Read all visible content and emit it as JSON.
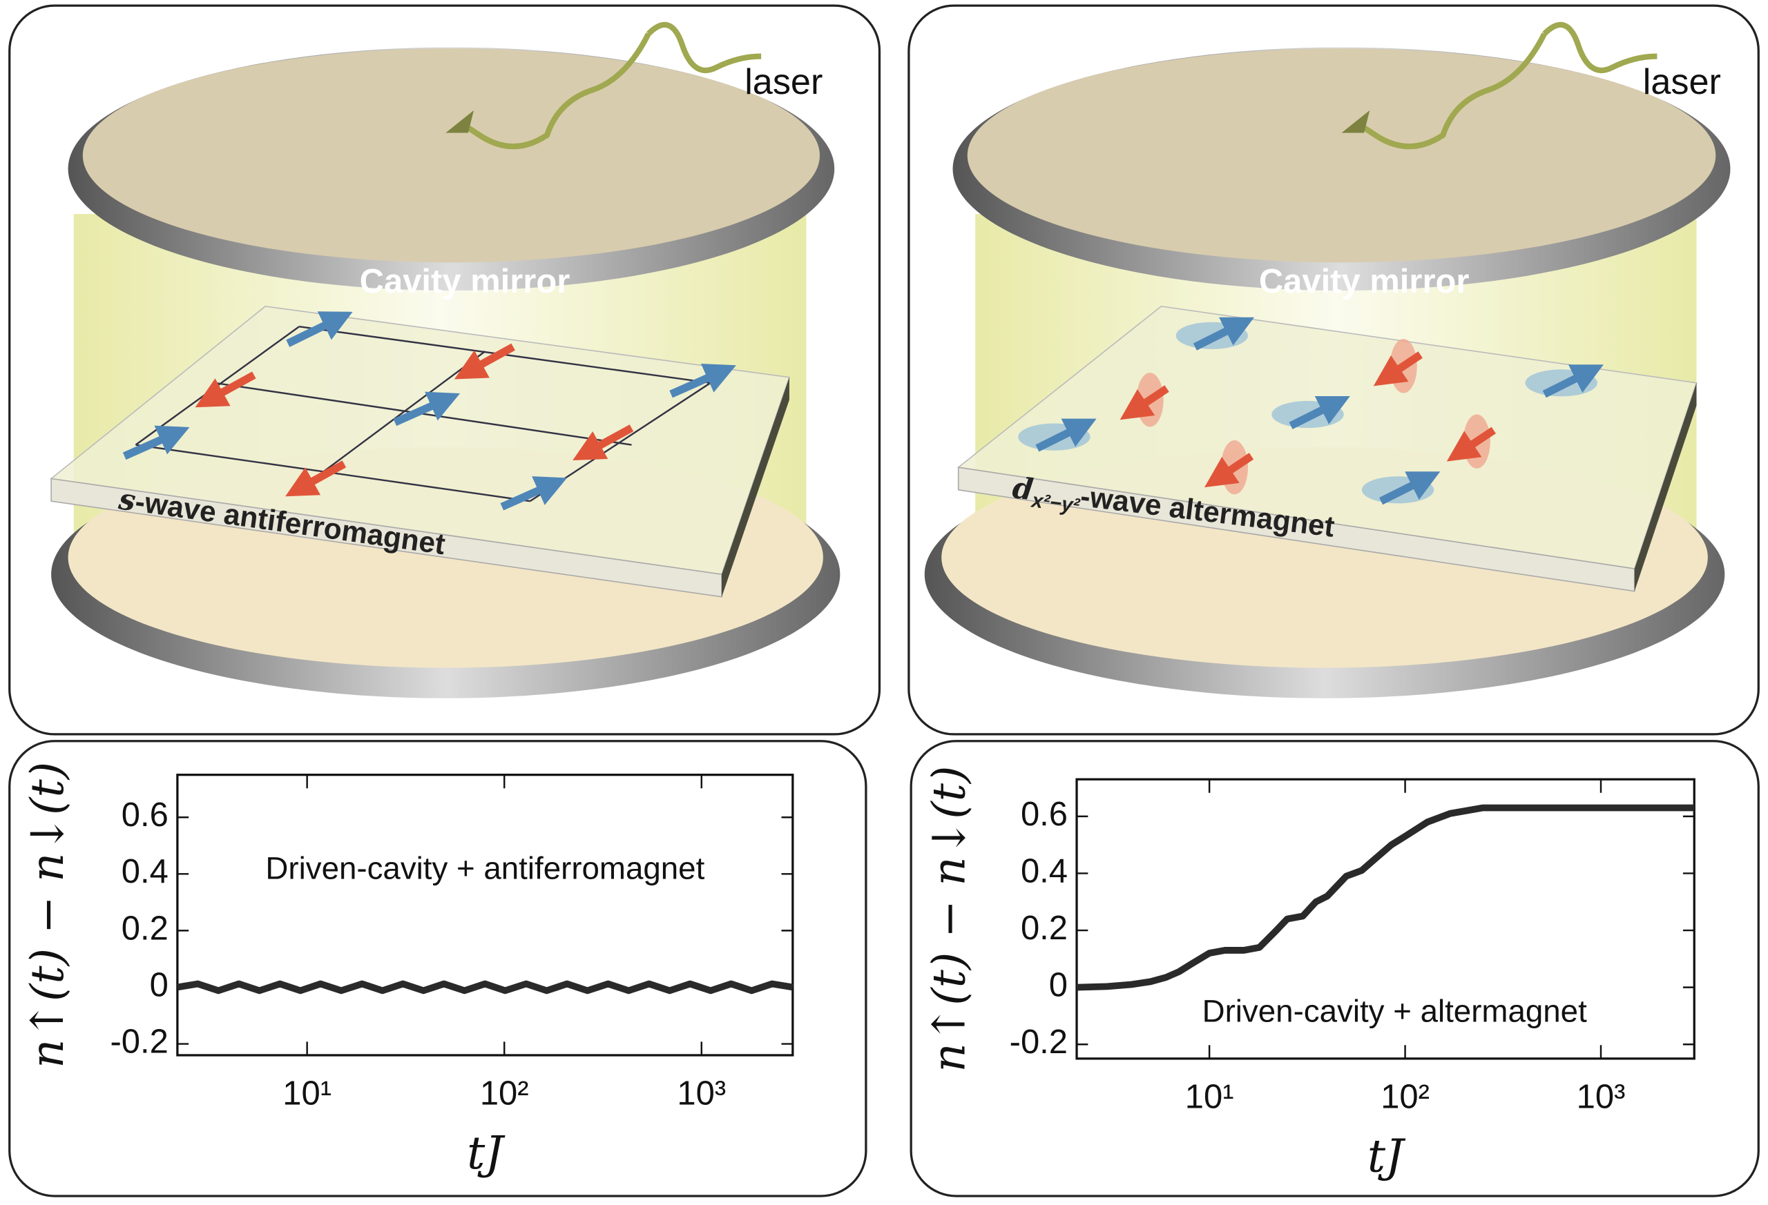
{
  "illustrations": [
    {
      "laser": "laser",
      "mirror_label": "Cavity mirror",
      "material_symbol": "s",
      "material_rest": "-wave antiferromagnet"
    },
    {
      "laser": "laser",
      "mirror_label": "Cavity mirror",
      "material_symbol": "d",
      "material_subscript": "x²−y²",
      "material_rest": "-wave altermagnet"
    }
  ],
  "chart_data": [
    {
      "type": "line",
      "x_label": "tJ",
      "y_label": "n↑(t) − n↓(t)",
      "annotation": "Driven-cavity + antiferromagnet",
      "xscale": "log",
      "xlim": [
        2.2,
        2900
      ],
      "xticks": [
        {
          "value": 10,
          "label": "10¹"
        },
        {
          "value": 100,
          "label": "10²"
        },
        {
          "value": 1000,
          "label": "10³"
        }
      ],
      "ylim": [
        -0.24,
        0.75
      ],
      "yticks": [
        -0.2,
        0,
        0.2,
        0.4,
        0.6
      ],
      "color": "#2a2a2a",
      "x": [
        2.2,
        2.79,
        3.55,
        4.51,
        5.73,
        7.28,
        9.25,
        11.7,
        14.9,
        19.0,
        24.1,
        30.6,
        38.9,
        49.4,
        62.8,
        79.8,
        101,
        129,
        164,
        208,
        264,
        336,
        427,
        542,
        689,
        875,
        1112,
        1413,
        1795,
        2280,
        2900
      ],
      "values": [
        0,
        0.012,
        -0.012,
        0.012,
        -0.012,
        0.012,
        -0.012,
        0.012,
        -0.012,
        0.012,
        -0.012,
        0.012,
        -0.012,
        0.012,
        -0.012,
        0.012,
        -0.012,
        0.012,
        -0.012,
        0.012,
        -0.012,
        0.012,
        -0.012,
        0.012,
        -0.012,
        0.012,
        -0.012,
        0.012,
        -0.012,
        0.012,
        0
      ]
    },
    {
      "type": "line",
      "x_label": "tJ",
      "y_label": "n↑(t) − n↓(t)",
      "annotation": "Driven-cavity + altermagnet",
      "xscale": "log",
      "xlim": [
        2.1,
        3000
      ],
      "xticks": [
        {
          "value": 10,
          "label": "10¹"
        },
        {
          "value": 100,
          "label": "10²"
        },
        {
          "value": 1000,
          "label": "10³"
        }
      ],
      "ylim": [
        -0.25,
        0.73
      ],
      "yticks": [
        -0.2,
        0,
        0.2,
        0.4,
        0.6
      ],
      "color": "#2a2a2a",
      "x": [
        2.1,
        3,
        4,
        5,
        6,
        7,
        8,
        10,
        12,
        15,
        18,
        22,
        25,
        30,
        35,
        40,
        50,
        60,
        70,
        85,
        100,
        130,
        170,
        250,
        400,
        1000,
        3000
      ],
      "values": [
        0,
        0.003,
        0.01,
        0.02,
        0.035,
        0.055,
        0.08,
        0.12,
        0.13,
        0.13,
        0.14,
        0.2,
        0.24,
        0.25,
        0.3,
        0.32,
        0.39,
        0.41,
        0.45,
        0.5,
        0.53,
        0.58,
        0.61,
        0.63,
        0.63,
        0.63,
        0.63
      ]
    }
  ]
}
